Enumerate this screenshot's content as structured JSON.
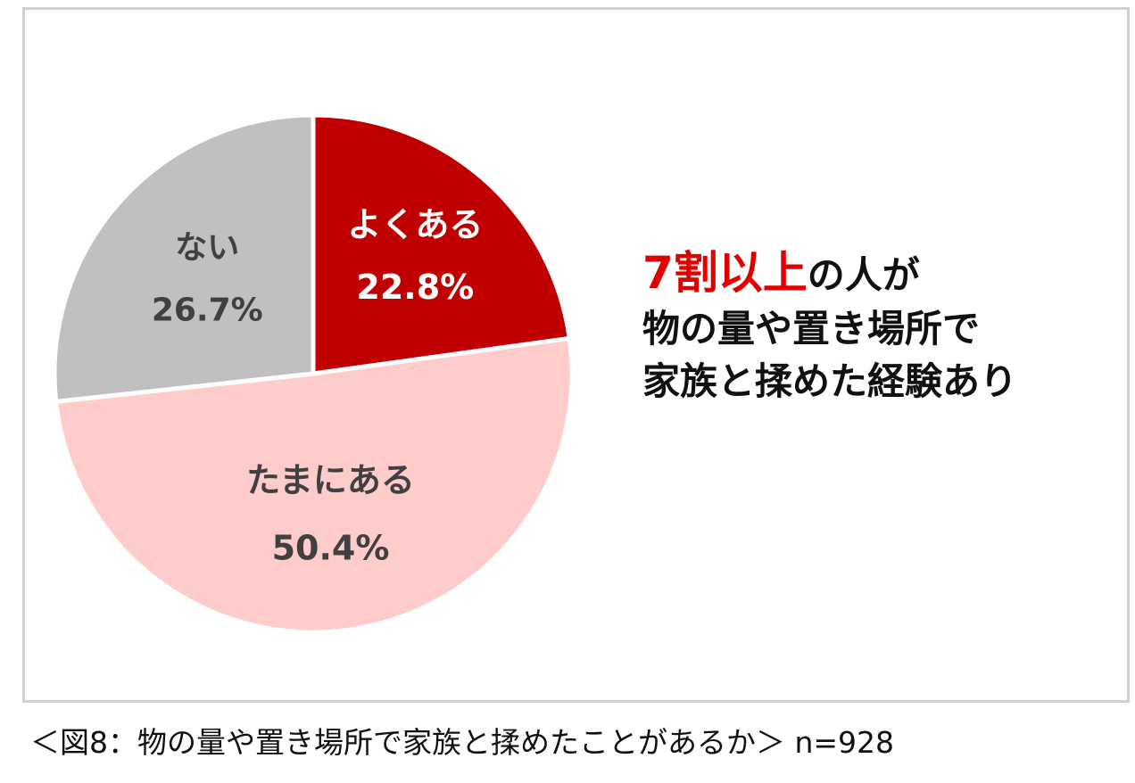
{
  "chart_data": {
    "type": "pie",
    "start_angle_deg": 0,
    "direction": "clockwise",
    "slices": [
      {
        "label": "よくある",
        "value": 22.8,
        "value_label": "22.8%",
        "color": "#c00000",
        "text_color": "#ffffff"
      },
      {
        "label": "たまにある",
        "value": 50.4,
        "value_label": "50.4%",
        "color": "#ffcccc",
        "text_color": "#404040"
      },
      {
        "label": "ない",
        "value": 26.7,
        "value_label": "26.7%",
        "color": "#c0c0c0",
        "text_color": "#404040"
      }
    ],
    "slice_border_color": "#ffffff"
  },
  "callout": {
    "highlight": "7割以上",
    "line1_rest": "の人が",
    "line2": "物の量や置き場所で",
    "line3": "家族と揉めた経験あり",
    "highlight_color": "#e00000"
  },
  "caption": "＜図8：物の量や置き場所で家族と揉めたことがあるか＞ n=928"
}
